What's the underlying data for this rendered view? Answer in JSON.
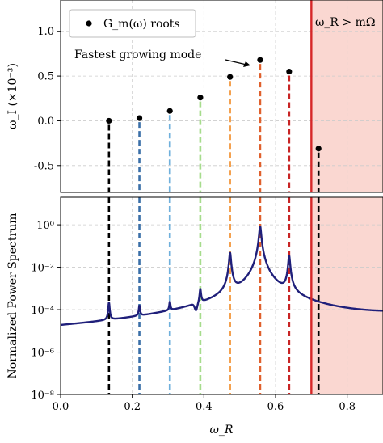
{
  "chart_data": [
    {
      "type": "scatter",
      "xlim": [
        0.0,
        0.9
      ],
      "ylim": [
        -0.8,
        1.35
      ],
      "ylabel": "ω_I (×10⁻³)",
      "yticks": [
        -0.5,
        0.0,
        0.5,
        1.0
      ],
      "ytick_labels": [
        "-0.5",
        "0.0",
        "0.5",
        "1.0"
      ],
      "grid": true,
      "legend": {
        "position": "top-left",
        "label": "G_m(ω) roots"
      },
      "annotation": {
        "text": "Fastest growing mode"
      },
      "series": [
        {
          "name": "G_m(ω) roots",
          "x": [
            0.135,
            0.22,
            0.305,
            0.39,
            0.473,
            0.557,
            0.638,
            0.72
          ],
          "y": [
            0.0,
            0.03,
            0.11,
            0.26,
            0.49,
            0.68,
            0.55,
            -0.31
          ]
        }
      ],
      "stem_colors": [
        "#000000",
        "#3a6fa8",
        "#6fb0dc",
        "#a6dc8c",
        "#f4a14f",
        "#e0602c",
        "#c82424",
        "#000000"
      ],
      "threshold": {
        "x": 0.7,
        "label": "ω_R > mΩ",
        "color": "#d62728",
        "shade": "#f9d3cc"
      }
    },
    {
      "type": "line",
      "xlim": [
        0.0,
        0.9
      ],
      "ylim_log10": [
        -8,
        1.3
      ],
      "y_scale": "log",
      "xlabel": "ω_R",
      "ylabel": "Normalized Power Spectrum",
      "xticks": [
        0.0,
        0.2,
        0.4,
        0.6,
        0.8
      ],
      "xtick_labels": [
        "0.0",
        "0.2",
        "0.4",
        "0.6",
        "0.8"
      ],
      "yticks_log10": [
        -8,
        -6,
        -4,
        -2,
        0
      ],
      "ytick_labels": [
        "10⁻⁸",
        "10⁻⁶",
        "10⁻⁴",
        "10⁻²",
        "10⁰"
      ],
      "grid": true,
      "line_color": "#1f1f7a",
      "peak_heights_log10": [
        -3.7,
        -3.95,
        -3.8,
        -3.1,
        -1.3,
        -0.05,
        -1.45
      ]
    }
  ]
}
